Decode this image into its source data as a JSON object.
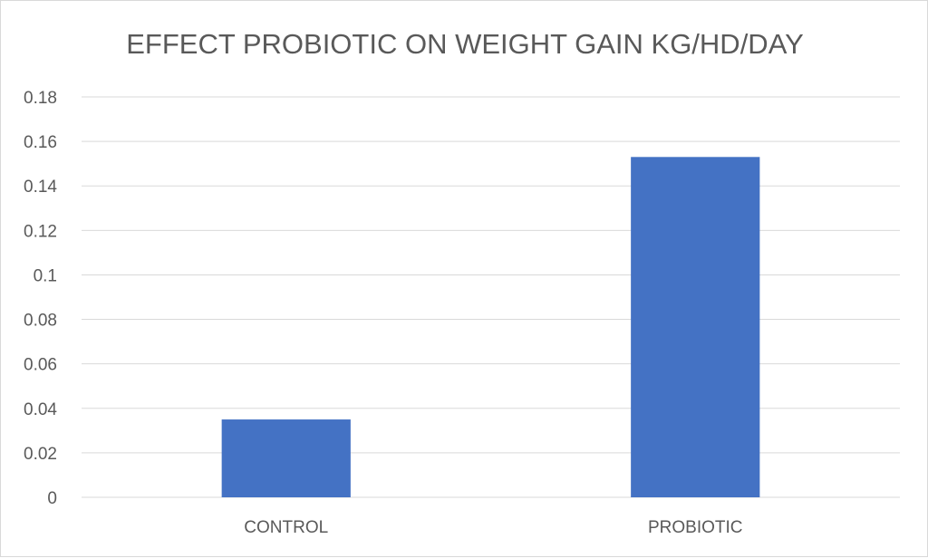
{
  "chart_data": {
    "type": "bar",
    "title": "EFFECT PROBIOTIC ON WEIGHT GAIN KG/HD/DAY",
    "categories": [
      "CONTROL",
      "PROBIOTIC"
    ],
    "values": [
      0.035,
      0.153
    ],
    "ylim": [
      0,
      0.18
    ],
    "yticks": [
      0,
      0.02,
      0.04,
      0.06,
      0.08,
      0.1,
      0.12,
      0.14,
      0.16,
      0.18
    ],
    "ytick_labels": [
      "0",
      "0.02",
      "0.04",
      "0.06",
      "0.08",
      "0.1",
      "0.12",
      "0.14",
      "0.16",
      "0.18"
    ],
    "grid": true,
    "bar_color": "#4472c4",
    "grid_color": "#d9d9d9",
    "text_color": "#595959"
  }
}
